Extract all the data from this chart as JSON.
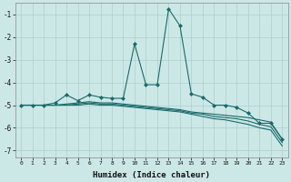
{
  "xlabel": "Humidex (Indice chaleur)",
  "ylabel": "",
  "xlim": [
    -0.5,
    23.5
  ],
  "ylim": [
    -7.3,
    -0.5
  ],
  "yticks": [
    -7,
    -6,
    -5,
    -4,
    -3,
    -2,
    -1
  ],
  "xticks": [
    0,
    1,
    2,
    3,
    4,
    5,
    6,
    7,
    8,
    9,
    10,
    11,
    12,
    13,
    14,
    15,
    16,
    17,
    18,
    19,
    20,
    21,
    22,
    23
  ],
  "background_color": "#cce8e6",
  "grid_color": "#aacfcd",
  "line_color": "#1a6b6b",
  "lines": [
    {
      "x": [
        0,
        1,
        2,
        3,
        4,
        5,
        6,
        7,
        8,
        9,
        10,
        11,
        12,
        13,
        14,
        15,
        16,
        17,
        18,
        19,
        20,
        21,
        22,
        23
      ],
      "y": [
        -5.0,
        -5.0,
        -5.0,
        -4.9,
        -4.55,
        -4.8,
        -4.55,
        -4.65,
        -4.7,
        -4.7,
        -2.3,
        -4.1,
        -4.1,
        -0.75,
        -1.5,
        -4.5,
        -4.65,
        -5.0,
        -5.0,
        -5.1,
        -5.35,
        -5.8,
        -5.8,
        -6.5
      ],
      "marker": "D",
      "markersize": 2.0,
      "linewidth": 0.8,
      "has_marker": true
    },
    {
      "x": [
        0,
        1,
        2,
        3,
        4,
        5,
        6,
        7,
        8,
        9,
        10,
        11,
        12,
        13,
        14,
        15,
        16,
        17,
        18,
        19,
        20,
        21,
        22,
        23
      ],
      "y": [
        -5.0,
        -5.0,
        -5.0,
        -5.0,
        -4.95,
        -4.9,
        -4.85,
        -4.9,
        -4.9,
        -4.95,
        -5.0,
        -5.05,
        -5.1,
        -5.15,
        -5.2,
        -5.3,
        -5.35,
        -5.4,
        -5.45,
        -5.5,
        -5.55,
        -5.65,
        -5.75,
        -6.5
      ],
      "marker": null,
      "markersize": 0,
      "linewidth": 0.8,
      "has_marker": false
    },
    {
      "x": [
        0,
        1,
        2,
        3,
        4,
        5,
        6,
        7,
        8,
        9,
        10,
        11,
        12,
        13,
        14,
        15,
        16,
        17,
        18,
        19,
        20,
        21,
        22,
        23
      ],
      "y": [
        -5.0,
        -5.0,
        -5.0,
        -5.0,
        -5.0,
        -4.95,
        -4.9,
        -4.95,
        -4.95,
        -5.0,
        -5.05,
        -5.1,
        -5.15,
        -5.2,
        -5.25,
        -5.35,
        -5.4,
        -5.5,
        -5.55,
        -5.6,
        -5.7,
        -5.85,
        -5.95,
        -6.65
      ],
      "marker": null,
      "markersize": 0,
      "linewidth": 0.8,
      "has_marker": false
    },
    {
      "x": [
        0,
        1,
        2,
        3,
        4,
        5,
        6,
        7,
        8,
        9,
        10,
        11,
        12,
        13,
        14,
        15,
        16,
        17,
        18,
        19,
        20,
        21,
        22,
        23
      ],
      "y": [
        -5.0,
        -5.0,
        -5.0,
        -5.0,
        -5.0,
        -5.0,
        -4.95,
        -5.0,
        -5.0,
        -5.05,
        -5.1,
        -5.15,
        -5.2,
        -5.25,
        -5.3,
        -5.4,
        -5.5,
        -5.6,
        -5.65,
        -5.75,
        -5.85,
        -6.0,
        -6.1,
        -6.8
      ],
      "marker": null,
      "markersize": 0,
      "linewidth": 0.8,
      "has_marker": false
    }
  ]
}
